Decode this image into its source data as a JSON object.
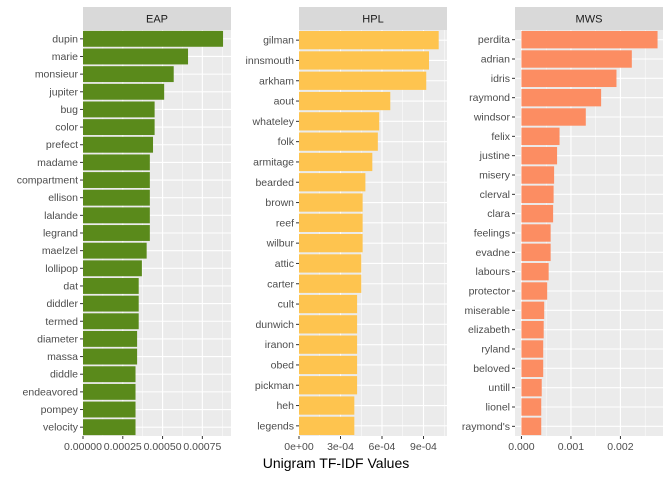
{
  "chart_data": {
    "type": "bar",
    "orientation": "horizontal",
    "xlabel": "Unigram TF-IDF Values",
    "ylabel": "",
    "grid": true,
    "panels": [
      {
        "strip": "EAP",
        "color": "#5a8a1b",
        "xlim": [
          0,
          0.00093
        ],
        "ticks": [
          0,
          0.00025,
          0.0005,
          0.00075
        ],
        "tick_labels": [
          "0.00000",
          "0.00025",
          "0.00050",
          "0.00075"
        ],
        "categories": [
          "dupin",
          "marie",
          "monsieur",
          "jupiter",
          "bug",
          "color",
          "prefect",
          "madame",
          "compartment",
          "ellison",
          "lalande",
          "legrand",
          "maelzel",
          "lollipop",
          "dat",
          "diddler",
          "termed",
          "diameter",
          "massa",
          "diddle",
          "endeavored",
          "pompey",
          "velocity"
        ],
        "values": [
          0.00088,
          0.00066,
          0.00057,
          0.00051,
          0.00045,
          0.00045,
          0.00044,
          0.00042,
          0.00042,
          0.00042,
          0.00042,
          0.00042,
          0.0004,
          0.00037,
          0.00035,
          0.00035,
          0.00035,
          0.00034,
          0.00034,
          0.00033,
          0.00033,
          0.00033,
          0.00033
        ]
      },
      {
        "strip": "HPL",
        "color": "#fec44f",
        "xlim": [
          0,
          0.00107
        ],
        "ticks": [
          0,
          0.0003,
          0.0006,
          0.0009
        ],
        "tick_labels": [
          "0e+00",
          "3e-04",
          "6e-04",
          "9e-04"
        ],
        "categories": [
          "gilman",
          "innsmouth",
          "arkham",
          "aout",
          "whateley",
          "folk",
          "armitage",
          "bearded",
          "brown",
          "reef",
          "wilbur",
          "attic",
          "carter",
          "cult",
          "dunwich",
          "iranon",
          "obed",
          "pickman",
          "heh",
          "legends"
        ],
        "values": [
          0.00101,
          0.00094,
          0.00092,
          0.00066,
          0.00058,
          0.00057,
          0.00053,
          0.00048,
          0.00046,
          0.00046,
          0.00046,
          0.00045,
          0.00045,
          0.00042,
          0.00042,
          0.00042,
          0.00042,
          0.00042,
          0.0004,
          0.0004
        ]
      },
      {
        "strip": "MWS",
        "color": "#fc8d62",
        "xlim": [
          -0.00013,
          0.00286
        ],
        "ticks": [
          0,
          0.001,
          0.002
        ],
        "tick_labels": [
          "0.000",
          "0.001",
          "0.002"
        ],
        "categories": [
          "perdita",
          "adrian",
          "idris",
          "raymond",
          "windsor",
          "felix",
          "justine",
          "misery",
          "clerval",
          "clara",
          "feelings",
          "evadne",
          "labours",
          "protector",
          "miserable",
          "elizabeth",
          "ryland",
          "beloved",
          "untill",
          "lionel",
          "raymond's"
        ],
        "values": [
          0.00275,
          0.00223,
          0.00192,
          0.00161,
          0.0013,
          0.00077,
          0.00072,
          0.00066,
          0.00065,
          0.00064,
          0.00059,
          0.00059,
          0.00055,
          0.00052,
          0.00046,
          0.00045,
          0.00044,
          0.00044,
          0.00041,
          0.0004,
          0.0004
        ]
      }
    ]
  }
}
